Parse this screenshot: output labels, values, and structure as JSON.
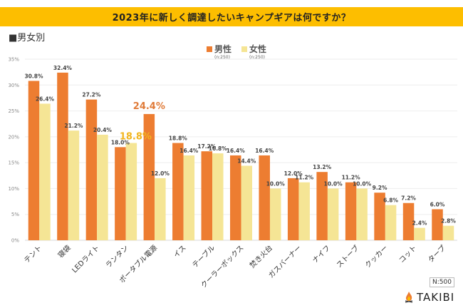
{
  "header": {
    "title": "2023年に新しく調達したいキャンプギアは何ですか？",
    "subtitle": "■男女別"
  },
  "footer": {
    "sample_size": "N:500",
    "brand": "TAKIBI",
    "brand_icon": "campfire-icon"
  },
  "colors": {
    "title_bar": "#FDBE00",
    "male": "#ED7D31",
    "female": "#F5E595",
    "highlight_male": "#E07B39",
    "highlight_female": "#F2B51E"
  },
  "chart_data": {
    "type": "bar",
    "title": "2023年に新しく調達したいキャンプギアは何ですか？",
    "xlabel": "",
    "ylabel": "",
    "ylim": [
      0,
      35
    ],
    "yticks": [
      0,
      5,
      10,
      15,
      20,
      25,
      30,
      35
    ],
    "ytick_labels": [
      "0%",
      "5%",
      "10%",
      "15%",
      "20%",
      "25%",
      "30%",
      "35%"
    ],
    "grid": true,
    "legend_position": "top-center",
    "categories": [
      "テント",
      "寝袋",
      "LEDライト",
      "ランタン",
      "ポータブル電源",
      "イス",
      "テーブル",
      "クーラーボックス",
      "焚き火台",
      "ガスバーナー",
      "ナイフ",
      "ストーブ",
      "クッカー",
      "コット",
      "タープ"
    ],
    "series": [
      {
        "name": "男性",
        "note": "(n:250)",
        "values": [
          30.8,
          32.4,
          27.2,
          18.0,
          24.4,
          18.8,
          17.2,
          16.4,
          16.4,
          12.0,
          13.2,
          11.2,
          9.2,
          7.2,
          6.0
        ]
      },
      {
        "name": "女性",
        "note": "(n:250)",
        "values": [
          26.4,
          21.2,
          20.4,
          18.8,
          12.0,
          16.4,
          16.8,
          14.4,
          10.0,
          11.2,
          10.0,
          10.0,
          6.8,
          2.4,
          2.8
        ]
      }
    ],
    "highlights": [
      {
        "series": 0,
        "category": "ポータブル電源",
        "label": "24.4%"
      },
      {
        "series": 1,
        "category": "ランタン",
        "label": "18.8%"
      }
    ]
  }
}
